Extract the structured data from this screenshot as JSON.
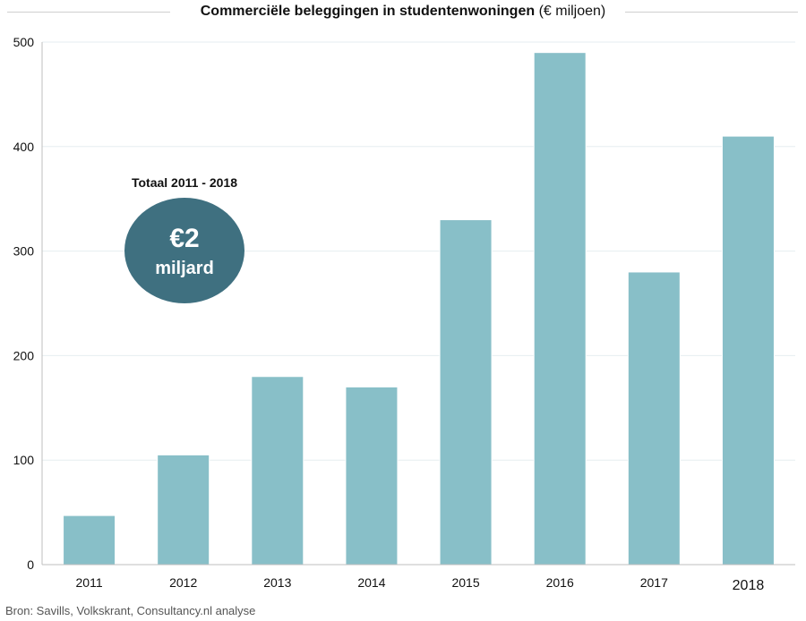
{
  "chart_data": {
    "type": "bar",
    "title": "Commerciële beleggingen in studentenwoningen",
    "title_unit": "(€ miljoen)",
    "categories": [
      "2011",
      "2012",
      "2013",
      "2014",
      "2015",
      "2016",
      "2017",
      "2018"
    ],
    "values": [
      47,
      105,
      180,
      170,
      330,
      490,
      280,
      410
    ],
    "ylim": [
      0,
      500
    ],
    "yticks": [
      0,
      100,
      200,
      300,
      400,
      500
    ],
    "grid": true,
    "legend": "none",
    "bar_color": "#88bfc8",
    "annotation": {
      "heading": "Totaal 2011 - 2018",
      "value": "€2",
      "unit": "miljard",
      "color": "#3f7080"
    }
  },
  "source": "Bron: Savills, Volkskrant, Consultancy.nl analyse"
}
